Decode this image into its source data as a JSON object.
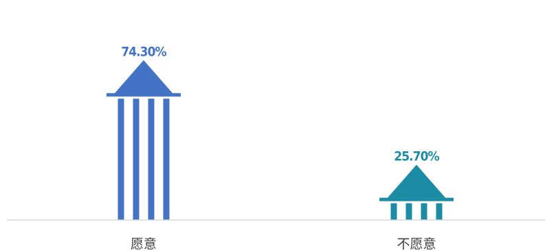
{
  "chart_data": {
    "type": "bar",
    "categories": [
      "愿意",
      "不愿意"
    ],
    "values": [
      74.3,
      25.7
    ],
    "labels": [
      "74.30%",
      "25.70%"
    ],
    "colors": [
      "#4472C4",
      "#1B8CA4"
    ],
    "ylim": [
      0,
      100
    ],
    "grid": false,
    "legend": "none",
    "bar_style": "pillar-pictogram"
  }
}
